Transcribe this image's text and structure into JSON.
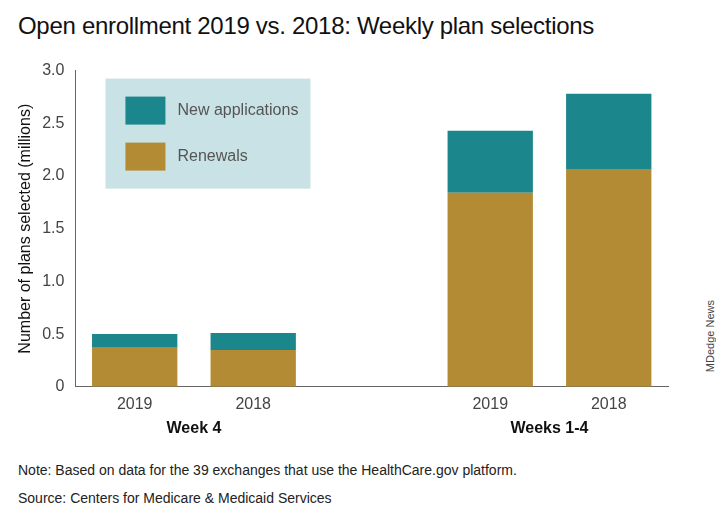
{
  "chart_data": {
    "type": "bar",
    "title": "Open enrollment 2019 vs. 2018: Weekly plan selections",
    "y_label": "Number of plans selected (millions)",
    "categories": [
      "2019",
      "2018",
      null,
      "2019",
      "2018"
    ],
    "category_groups": [
      "Week 4",
      "Week 4",
      null,
      "Weeks 1-4",
      "Weeks 1-4"
    ],
    "series": [
      {
        "name": "Renewals",
        "color": "#b38b35",
        "values": [
          0.37,
          0.35,
          null,
          1.84,
          2.06
        ]
      },
      {
        "name": "New applications",
        "color": "#1b878c",
        "values": [
          0.13,
          0.16,
          null,
          0.59,
          0.72
        ]
      }
    ],
    "stacked": true,
    "legend": "upper left",
    "grid": false,
    "ylim": [
      0,
      3
    ],
    "yticks": [
      0,
      0.5,
      {
        "value": 1,
        "label": "1.0"
      },
      1.5,
      {
        "value": 2,
        "label": "2.0"
      },
      2.5,
      {
        "value": 3,
        "label": "3.0"
      }
    ],
    "note": "Note: Based on data for the 39 exchanges that use the HealthCare.gov platform.",
    "source": "Source: Centers for Medicare & Medicaid Services",
    "credit": "MDedge News"
  }
}
